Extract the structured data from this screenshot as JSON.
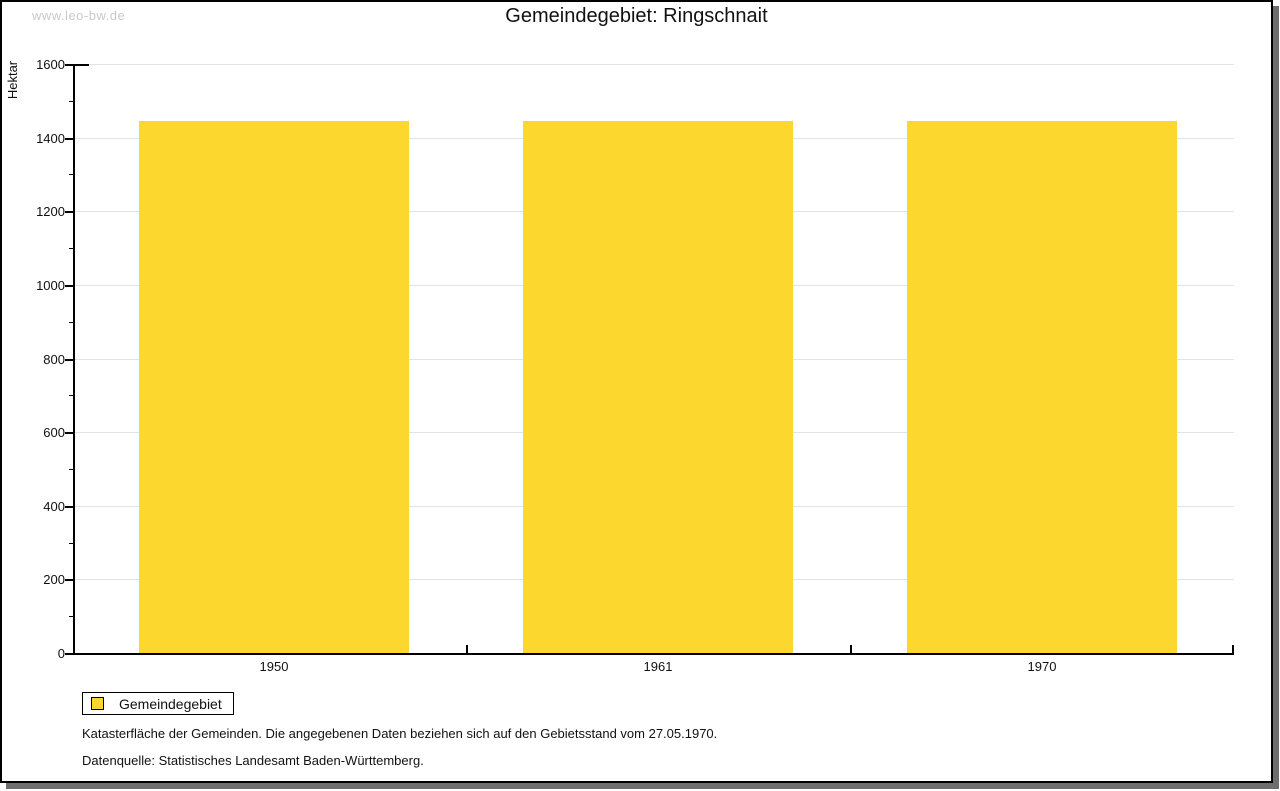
{
  "watermark": "www.leo-bw.de",
  "chart_data": {
    "type": "bar",
    "title": "Gemeindegebiet: Ringschnait",
    "ylabel": "Hektar",
    "xlabel": "",
    "categories": [
      "1950",
      "1961",
      "1970"
    ],
    "series": [
      {
        "name": "Gemeindegebiet",
        "values": [
          1444,
          1444,
          1444
        ]
      }
    ],
    "ylim": [
      0,
      1600
    ],
    "ytick_major_step": 200,
    "ytick_minor_step": 100,
    "ytick_labels": [
      "0",
      "200",
      "400",
      "600",
      "800",
      "1000",
      "1200",
      "1400",
      "1600"
    ],
    "grid": true,
    "legend_position": "bottom-left",
    "bar_color": "#fcd72d",
    "gridline_color": "#e3e3e3",
    "axis_color": "#000000"
  },
  "legend": {
    "label": "Gemeindegebiet",
    "swatch_color": "#fcd72d"
  },
  "footnotes": [
    "Katasterfläche der Gemeinden. Die angegebenen Daten beziehen sich auf den Gebietsstand vom 27.05.1970.",
    "Datenquelle: Statistisches Landesamt Baden-Württemberg."
  ]
}
